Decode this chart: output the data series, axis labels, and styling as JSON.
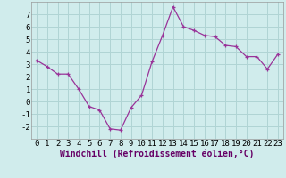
{
  "x": [
    0,
    1,
    2,
    3,
    4,
    5,
    6,
    7,
    8,
    9,
    10,
    11,
    12,
    13,
    14,
    15,
    16,
    17,
    18,
    19,
    20,
    21,
    22,
    23
  ],
  "y": [
    3.3,
    2.8,
    2.2,
    2.2,
    1.0,
    -0.4,
    -0.7,
    -2.2,
    -2.3,
    -0.5,
    0.5,
    3.2,
    5.3,
    7.6,
    6.0,
    5.7,
    5.3,
    5.2,
    4.5,
    4.4,
    3.6,
    3.6,
    2.6,
    3.8
  ],
  "line_color": "#993399",
  "marker": "+",
  "marker_size": 3,
  "bg_color": "#d0ecec",
  "grid_color": "#b0d4d4",
  "xlabel": "Windchill (Refroidissement éolien,°C)",
  "xlabel_fontsize": 7,
  "tick_fontsize": 6.5,
  "ylim": [
    -3,
    8
  ],
  "xlim": [
    -0.5,
    23.5
  ],
  "yticks": [
    -2,
    -1,
    0,
    1,
    2,
    3,
    4,
    5,
    6,
    7
  ],
  "xticks": [
    0,
    1,
    2,
    3,
    4,
    5,
    6,
    7,
    8,
    9,
    10,
    11,
    12,
    13,
    14,
    15,
    16,
    17,
    18,
    19,
    20,
    21,
    22,
    23
  ]
}
